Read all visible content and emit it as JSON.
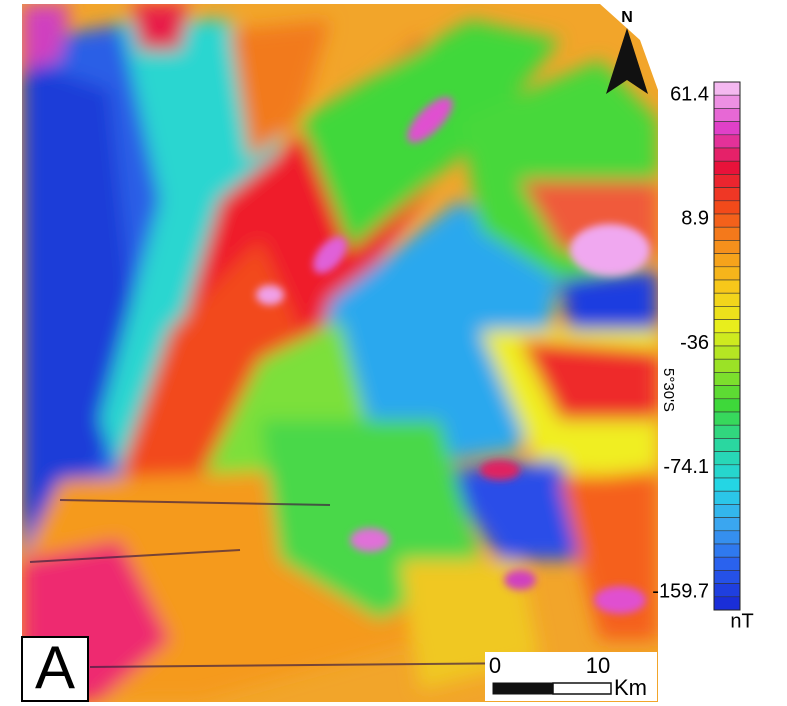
{
  "map": {
    "panel_label": "A",
    "north_label": "N",
    "latitude_label": "5°30'S",
    "scale_bar": {
      "start": "0",
      "end": "10",
      "unit": "Km"
    },
    "colorbar": {
      "unit": "nT",
      "ticks": [
        61.4,
        8.9,
        -36,
        -74.1,
        -159.7
      ],
      "colors": [
        "#f4b8f0",
        "#e040c8",
        "#e8123a",
        "#f24a1a",
        "#f5901c",
        "#f7c81a",
        "#e8ee1c",
        "#9be226",
        "#3ed83a",
        "#2ad7a0",
        "#24d6e4",
        "#3aa6f0",
        "#2a62ee",
        "#1a2ed8"
      ]
    }
  }
}
